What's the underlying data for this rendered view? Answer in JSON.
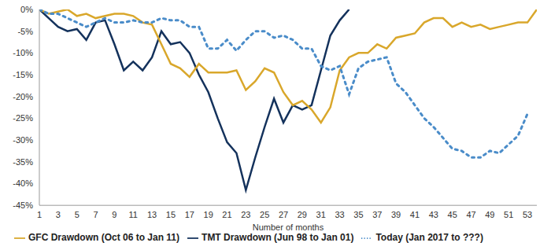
{
  "chart_data": {
    "type": "line",
    "x_label": "Number of months",
    "x": [
      1,
      2,
      3,
      4,
      5,
      6,
      7,
      8,
      9,
      10,
      11,
      12,
      13,
      14,
      15,
      16,
      17,
      18,
      19,
      20,
      21,
      22,
      23,
      24,
      25,
      26,
      27,
      28,
      29,
      30,
      31,
      32,
      33,
      34,
      35,
      36,
      37,
      38,
      39,
      40,
      41,
      42,
      43,
      44,
      45,
      46,
      47,
      48,
      49,
      50,
      51,
      52,
      53,
      54
    ],
    "xlim": [
      1,
      54
    ],
    "xticks": [
      1,
      3,
      5,
      7,
      9,
      11,
      13,
      15,
      17,
      19,
      21,
      23,
      25,
      27,
      29,
      31,
      33,
      35,
      37,
      39,
      41,
      43,
      45,
      47,
      49,
      51,
      53
    ],
    "ylim": [
      -45,
      0
    ],
    "yticks": [
      {
        "value": 0,
        "label": "0%"
      },
      {
        "value": -5,
        "label": "-5%"
      },
      {
        "value": -10,
        "label": "-10%"
      },
      {
        "value": -15,
        "label": "-15%"
      },
      {
        "value": -20,
        "label": "-20%"
      },
      {
        "value": -25,
        "label": "-25%"
      },
      {
        "value": -30,
        "label": "-30%"
      },
      {
        "value": -35,
        "label": "-35%"
      },
      {
        "value": -40,
        "label": "-40%"
      },
      {
        "value": -45,
        "label": "-45%"
      }
    ],
    "grid": false,
    "legend": "bottom",
    "series": [
      {
        "name": "TMT Drawdown (Jun 98 to Jan 01)",
        "color": "#14325c",
        "line_style": "solid",
        "values": [
          0,
          -2,
          -4,
          -5,
          -4.5,
          -7,
          -3,
          -2.5,
          -8,
          -14,
          -12,
          -14,
          -11,
          -5,
          -8,
          -7.5,
          -10,
          -15,
          -19,
          -25,
          -30.5,
          -33,
          -41.5,
          -34,
          -27,
          -20.5,
          -26,
          -22,
          -23,
          -22,
          -14,
          -6,
          -2.5,
          0,
          null,
          null,
          null,
          null,
          null,
          null,
          null,
          null,
          null,
          null,
          null,
          null,
          null,
          null,
          null,
          null,
          null,
          null,
          null,
          null
        ]
      },
      {
        "name": "GFC Drawdown (Oct 06 to Jan 11)",
        "color": "#d9a72b",
        "line_style": "solid",
        "values": [
          0,
          -1,
          -0.5,
          0,
          -1.5,
          -1,
          -2,
          -1.5,
          -1,
          -1,
          -1.5,
          -3,
          -3.5,
          -8,
          -12.5,
          -13.5,
          -15.5,
          -12.5,
          -14.5,
          -14.5,
          -14.5,
          -14,
          -18.5,
          -16.5,
          -13.5,
          -14.5,
          -19,
          -22,
          -21,
          -23,
          -26,
          -22.5,
          -14,
          -11,
          -10,
          -10,
          -8,
          -9,
          -6.5,
          -6,
          -5.5,
          -3,
          -2,
          -2,
          -4,
          -3,
          -4,
          -3.5,
          -4.5,
          -4,
          -3.5,
          -3,
          -3,
          0
        ]
      },
      {
        "name": "Today (Jan 2017 to ???)",
        "color": "#4a8cc9",
        "line_style": "dotted",
        "values": [
          0,
          -1,
          -1,
          -2,
          -3,
          -4,
          -3,
          -2,
          -3,
          -3,
          -2.5,
          -3,
          -3,
          -2,
          -2.5,
          -2.5,
          -4,
          -4,
          -9,
          -9,
          -7,
          -9.5,
          -7,
          -5,
          -5,
          -6.5,
          -6,
          -7,
          -9,
          -9,
          -13,
          -14,
          -13,
          -19.5,
          -13.5,
          -12,
          -11.5,
          -11,
          -17,
          -19,
          -22,
          -25,
          -27,
          -29.5,
          -32,
          -32.5,
          -34,
          -34,
          -32.5,
          -33,
          -31,
          -29,
          -24,
          null
        ]
      }
    ]
  }
}
